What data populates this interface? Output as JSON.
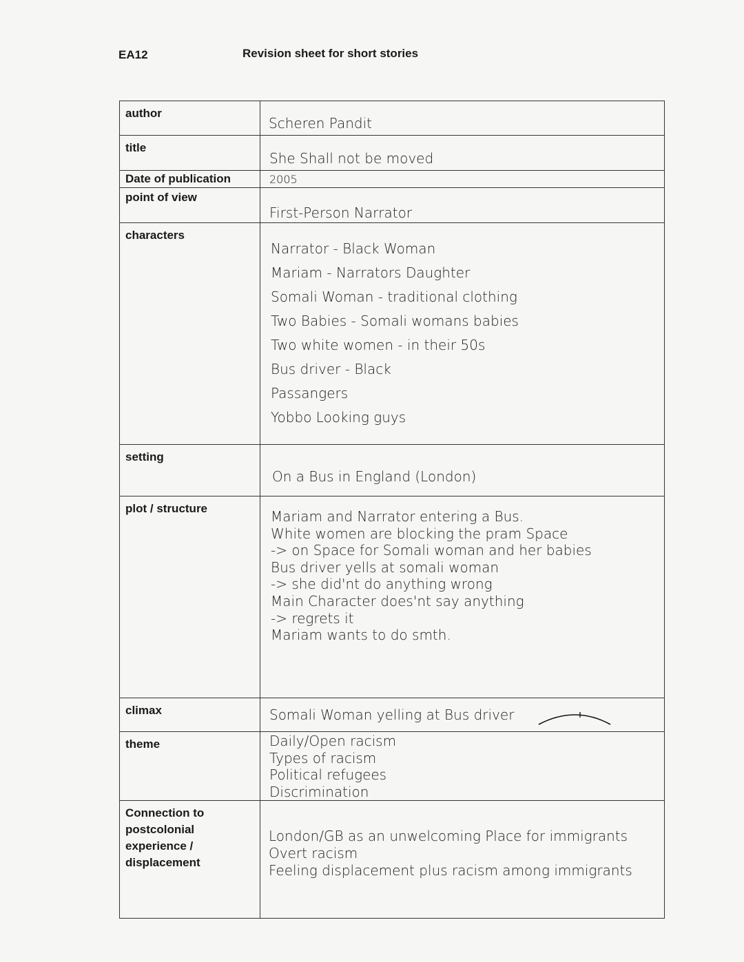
{
  "header": {
    "code": "EA12",
    "title": "Revision sheet for short stories"
  },
  "rows": {
    "author": {
      "label": "author",
      "value": "Scheren Pandit"
    },
    "title": {
      "label": "title",
      "value": "She Shall not be moved"
    },
    "date": {
      "label": "Date of publication",
      "value": "2005"
    },
    "pov": {
      "label": "point of view",
      "value": "First-Person Narrator"
    },
    "characters": {
      "label": "characters",
      "items": [
        "Narrator - Black Woman",
        "Mariam - Narrators Daughter",
        "Somali Woman - traditional clothing",
        "Two Babies - Somali womans babies",
        "Two white women - in their 50s",
        "Bus driver - Black",
        "Passangers",
        "Yobbo Looking guys"
      ]
    },
    "setting": {
      "label": "setting",
      "value": "On a Bus in England (London)"
    },
    "plot": {
      "label": "plot / structure",
      "items": [
        "Mariam and Narrator entering a Bus.",
        "White women are blocking the pram Space",
        "-> on Space for Somali woman and her babies",
        "Bus driver yells at somali woman",
        "-> she did'nt do anything wrong",
        "Main Character does'nt say anything",
        "-> regrets it",
        "Mariam wants to do smth."
      ]
    },
    "climax": {
      "label": "climax",
      "value": "Somali Woman yelling at Bus driver",
      "icon": "climax-arc-icon"
    },
    "theme": {
      "label": "theme",
      "items": [
        "Daily/Open racism",
        "Types of racism",
        "Political refugees",
        "Discrimination"
      ]
    },
    "connection": {
      "label_lines": [
        "Connection to",
        "postcolonial",
        "experience /",
        "displacement"
      ],
      "items": [
        "London/GB as an unwelcoming Place for immigrants",
        "Overt racism",
        "Feeling displacement plus racism among immigrants"
      ]
    }
  }
}
